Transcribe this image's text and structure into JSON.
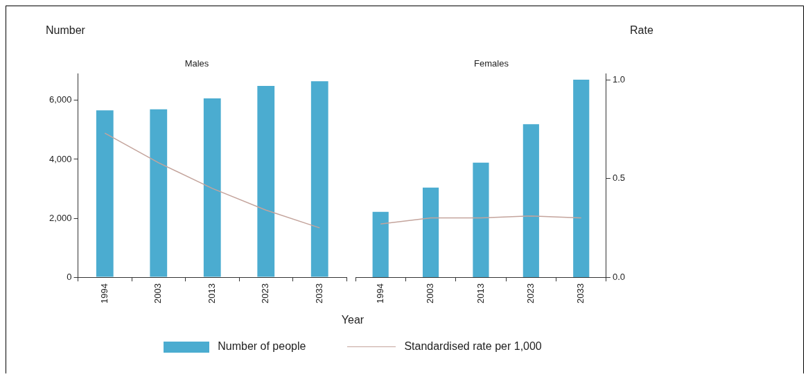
{
  "chart_data": [
    {
      "type": "bar",
      "title": "Males",
      "ylabel": "Number",
      "xlabel": "Year",
      "categories": [
        "1994",
        "2003",
        "2013",
        "2023",
        "2033"
      ],
      "series": [
        {
          "name": "Number of people",
          "color": "#4bacd0",
          "values": [
            5660,
            5700,
            6070,
            6490,
            6650
          ]
        },
        {
          "name": "Standardised rate per 1,000",
          "type": "line",
          "axis": "y2",
          "color": "#c4a49c",
          "values": [
            0.73,
            0.58,
            0.45,
            0.34,
            0.25
          ]
        }
      ],
      "ylim": [
        0,
        6900
      ],
      "yticks": [
        0,
        {
          "value": 2000,
          "label": "2,000"
        },
        {
          "value": 4000,
          "label": "4,000"
        },
        {
          "value": 6000,
          "label": "6,000"
        }
      ],
      "y2lim": [
        0,
        1.03
      ],
      "tick_labels": "xy",
      "grid": false,
      "legend": "bottom",
      "marker": "none"
    },
    {
      "type": "bar",
      "title": "Females",
      "y2label": "Rate",
      "categories": [
        "1994",
        "2003",
        "2013",
        "2023",
        "2033"
      ],
      "series": [
        {
          "color": "#4bacd0",
          "values": [
            2220,
            3040,
            3890,
            5190,
            6700
          ]
        },
        {
          "type": "line",
          "axis": "y2",
          "color": "#c4a49c",
          "values": [
            0.27,
            0.3,
            0.3,
            0.31,
            0.3
          ]
        }
      ],
      "ylim": [
        0,
        6900
      ],
      "y2lim": [
        0,
        1.03
      ],
      "y2ticks": [
        {
          "value": 0,
          "label": "0.0"
        },
        {
          "value": 0.5,
          "label": "0.5"
        },
        {
          "value": 1,
          "label": "1.0"
        }
      ],
      "tick_labels": "xy2",
      "grid": false,
      "legend": false,
      "marker": "none"
    }
  ]
}
